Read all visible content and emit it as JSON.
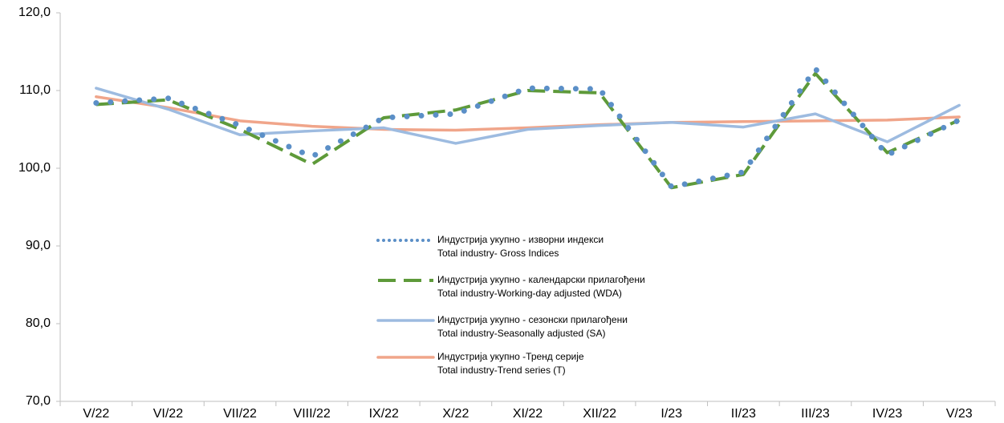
{
  "chart_data": {
    "type": "line",
    "categories": [
      "V/22",
      "VI/22",
      "VII/22",
      "VIII/22",
      "IX/22",
      "X/22",
      "XI/22",
      "XII/22",
      "I/23",
      "II/23",
      "III/23",
      "IV/23",
      "V/23"
    ],
    "series": [
      {
        "name": "Индустрија укупно - изворни индекси\nTotal industry- Gross Indices",
        "color": "#5b8fc7",
        "style": "dotted",
        "values": [
          108.4,
          109.0,
          105.5,
          101.5,
          106.5,
          107.0,
          110.3,
          110.2,
          97.6,
          99.5,
          112.8,
          101.7,
          106.2
        ]
      },
      {
        "name": "Индустрија укупно - календарски прилагођени\nTotal industry-Working-day adjusted (WDA)",
        "color": "#5e9a3a",
        "style": "dashed",
        "values": [
          108.2,
          108.8,
          105.0,
          100.5,
          106.5,
          107.5,
          110.0,
          109.7,
          97.5,
          99.2,
          112.2,
          102.0,
          106.2
        ]
      },
      {
        "name": "Индустрија укупно - сезонски прилагођени\nTotal industry-Seasonally adjusted (SA)",
        "color": "#9dbbe0",
        "style": "solid",
        "values": [
          110.3,
          107.6,
          104.3,
          104.8,
          105.2,
          103.2,
          105.0,
          105.5,
          105.9,
          105.3,
          107.0,
          103.4,
          108.1
        ]
      },
      {
        "name": "Индустрија укупно -Тренд серије\nTotal industry-Trend series (T)",
        "color": "#f0a58a",
        "style": "solid",
        "values": [
          109.2,
          107.8,
          106.1,
          105.4,
          105.0,
          104.9,
          105.2,
          105.6,
          105.9,
          106.0,
          106.1,
          106.2,
          106.6
        ]
      }
    ],
    "ylim": [
      70,
      120
    ],
    "yticks": [
      {
        "value": 70,
        "label": "70,0"
      },
      {
        "value": 80,
        "label": "80,0"
      },
      {
        "value": 90,
        "label": "90,0"
      },
      {
        "value": 100,
        "label": "100,0"
      },
      {
        "value": 110,
        "label": "110,0"
      },
      {
        "value": 120,
        "label": "120,0"
      }
    ],
    "grid": false
  }
}
